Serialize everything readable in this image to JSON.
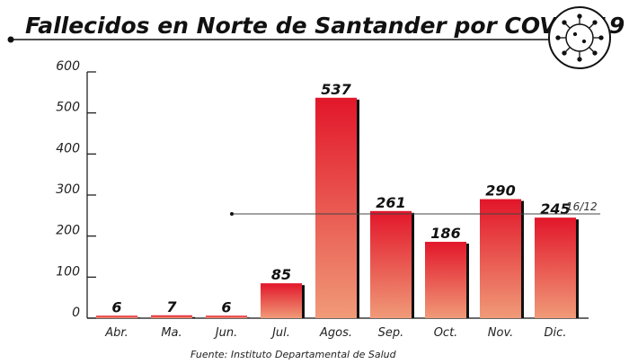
{
  "chart_data": {
    "type": "bar",
    "title": "Fallecidos en Norte de Santander por COVID-19",
    "categories": [
      "Abr.",
      "Ma.",
      "Jun.",
      "Jul.",
      "Agos.",
      "Sep.",
      "Oct.",
      "Nov.",
      "Dic."
    ],
    "values": [
      6,
      7,
      6,
      85,
      537,
      261,
      186,
      290,
      245
    ],
    "yticks": [
      "0",
      "100",
      "200",
      "300",
      "400",
      "500",
      "600"
    ],
    "ylim": [
      0,
      600
    ],
    "xlabel": "",
    "ylabel": "",
    "annotation": "16/12",
    "source": "Fuente: Instituto Departamental de Salud",
    "grid": false,
    "colors": {
      "bar_top": "#e2162a",
      "bar_bottom": "#f09a78",
      "shadow": "#111111"
    }
  }
}
